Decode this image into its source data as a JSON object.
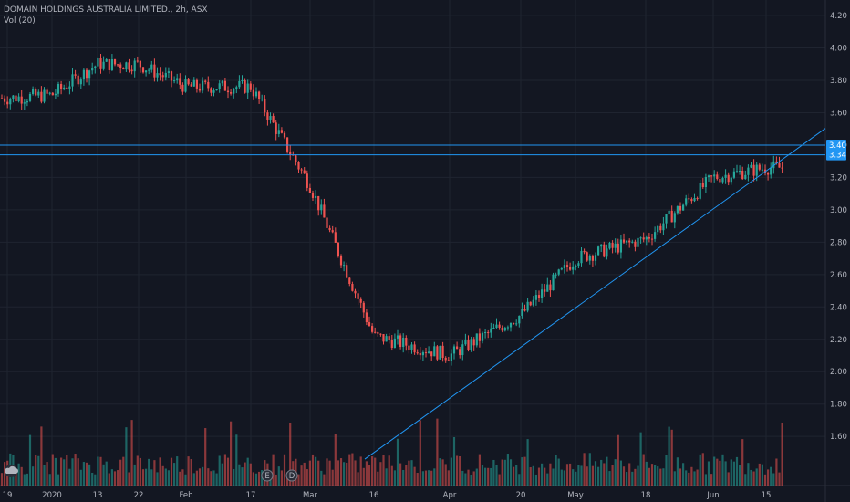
{
  "header": {
    "symbol_title": "DOMAIN HOLDINGS AUSTRALIA LIMITED., 2h, ASX",
    "volume_label": "Vol (20)"
  },
  "colors": {
    "background": "#131722",
    "up": "#26a69a",
    "down": "#ef5350",
    "grid": "#1f2430",
    "line": "#2196f3",
    "axis_text": "#b2b5be"
  },
  "events": {
    "earnings_label": "E",
    "dividend_label": "D"
  },
  "chart_data": {
    "type": "candlestick",
    "title": "DOMAIN HOLDINGS AUSTRALIA LIMITED., 2h, ASX",
    "indicator": "Vol (20)",
    "ylim": [
      1.46,
      4.24
    ],
    "y_ticks": [
      "4.20",
      "4.00",
      "3.80",
      "3.60",
      "3.40",
      "3.20",
      "3.00",
      "2.80",
      "2.60",
      "2.40",
      "2.20",
      "2.00",
      "1.80",
      "1.60"
    ],
    "x_ticks": [
      "19",
      "2020",
      "13",
      "22",
      "Feb",
      "17",
      "Mar",
      "16",
      "Apr",
      "20",
      "May",
      "18",
      "Jun",
      "15"
    ],
    "price_labels": [
      {
        "text": "3.40",
        "value": 3.4
      },
      {
        "text": "3.34",
        "value": 3.34
      }
    ],
    "horizontal_lines": [
      3.4,
      3.34
    ],
    "trendline": {
      "start_x_tick": "16",
      "start_value": 1.5,
      "end_x_tick": "15",
      "end_value": 3.24
    },
    "anchors": [
      {
        "x_tick": "19",
        "close": 3.69
      },
      {
        "x_tick": "2020",
        "close": 3.71
      },
      {
        "x_tick": "13",
        "close": 3.9
      },
      {
        "x_tick": "22",
        "close": 3.9
      },
      {
        "x_tick": "Feb",
        "close": 3.76
      },
      {
        "x_tick": "17",
        "close": 3.76
      },
      {
        "x_tick": "Mar",
        "close": 3.15
      },
      {
        "x_tick": "16",
        "close": 2.22
      },
      {
        "x_tick": "Apr",
        "close": 2.1
      },
      {
        "x_tick": "20",
        "close": 2.35
      },
      {
        "x_tick": "May",
        "close": 2.7
      },
      {
        "x_tick": "18",
        "close": 2.82
      },
      {
        "x_tick": "Jun",
        "close": 3.2
      },
      {
        "x_tick": "15",
        "close": 3.26
      }
    ]
  }
}
